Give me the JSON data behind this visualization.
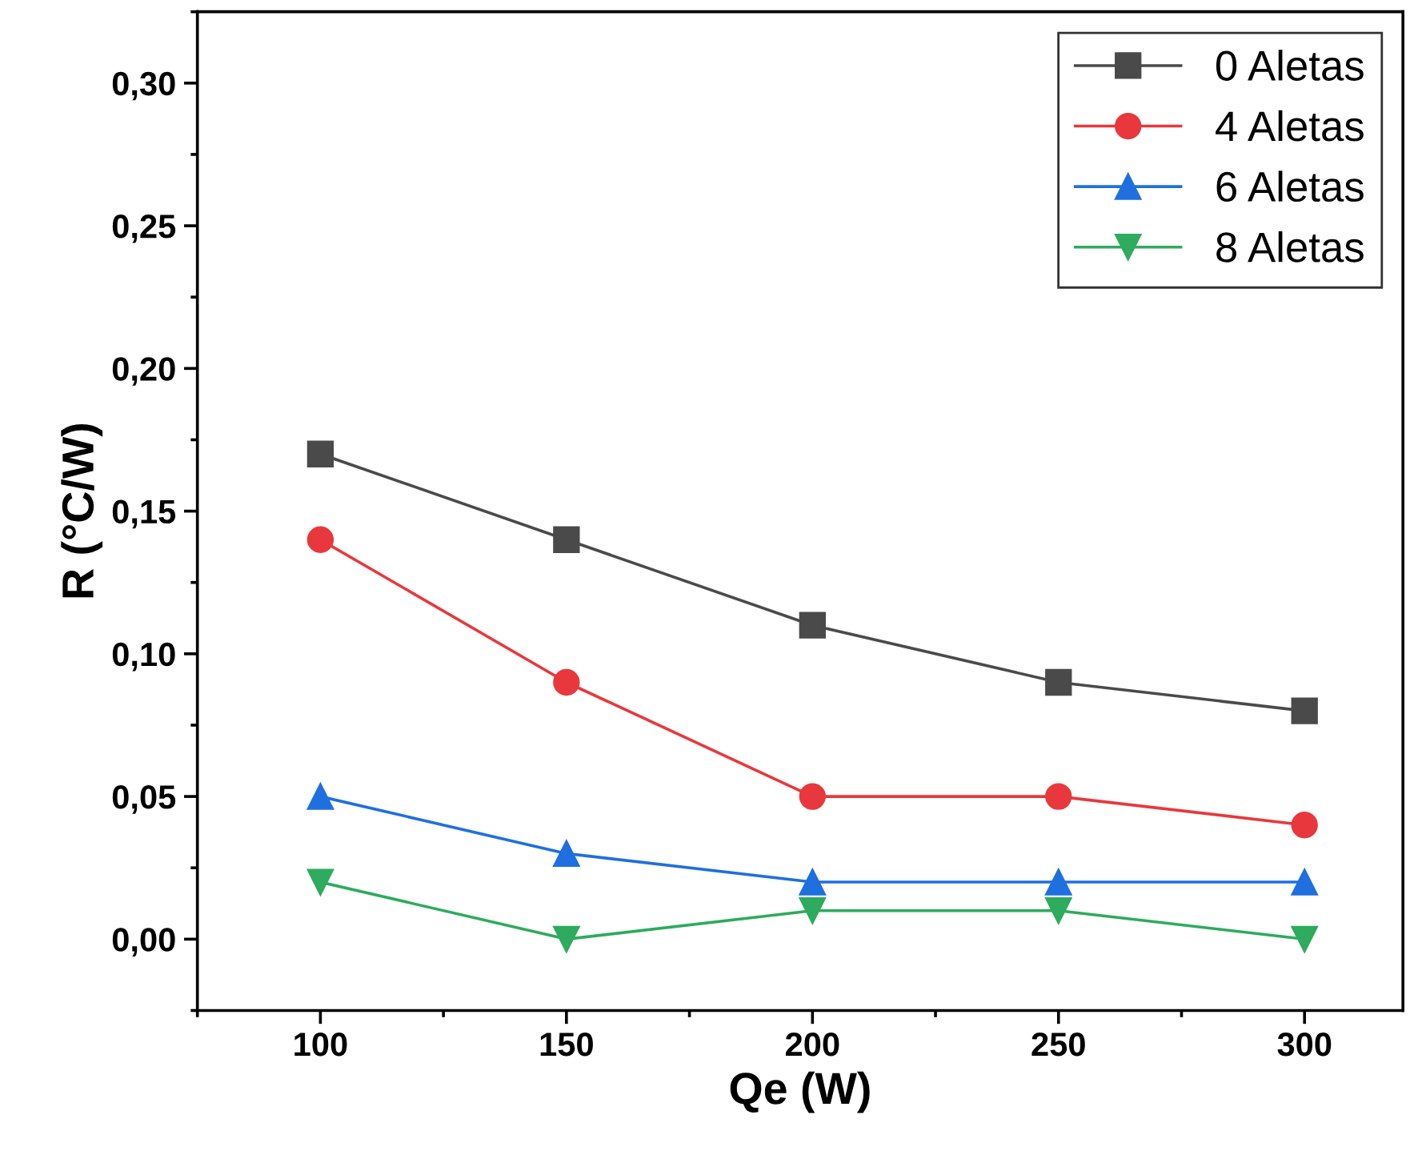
{
  "chart_data": {
    "type": "line",
    "xlabel": "Qe (W)",
    "ylabel": "R (°C/W)",
    "x": [
      100,
      150,
      200,
      250,
      300
    ],
    "series": [
      {
        "name": "0 Aletas",
        "color": "#4a4a4a",
        "marker": "square",
        "values": [
          0.17,
          0.14,
          0.11,
          0.09,
          0.08
        ]
      },
      {
        "name": "4 Aletas",
        "color": "#e8383d",
        "marker": "circle",
        "values": [
          0.14,
          0.09,
          0.05,
          0.05,
          0.04
        ]
      },
      {
        "name": "6 Aletas",
        "color": "#1f6fe0",
        "marker": "triangle",
        "values": [
          0.05,
          0.03,
          0.02,
          0.02,
          0.02
        ]
      },
      {
        "name": "8 Aletas",
        "color": "#2eab5e",
        "marker": "triangle-down",
        "values": [
          0.02,
          0.0,
          0.01,
          0.01,
          0.0
        ]
      }
    ],
    "xlim": [
      75,
      320
    ],
    "xticks": [
      100,
      150,
      200,
      250,
      300
    ],
    "ylim": [
      -0.025,
      0.325
    ],
    "yticks": [
      {
        "value": 0.0,
        "label": "0,00"
      },
      {
        "value": 0.05,
        "label": "0,05"
      },
      {
        "value": 0.1,
        "label": "0,10"
      },
      {
        "value": 0.15,
        "label": "0,15"
      },
      {
        "value": 0.2,
        "label": "0,20"
      },
      {
        "value": 0.25,
        "label": "0,25"
      },
      {
        "value": 0.3,
        "label": "0,30"
      }
    ],
    "grid": false,
    "legend": "top right",
    "line_style": "solid"
  }
}
